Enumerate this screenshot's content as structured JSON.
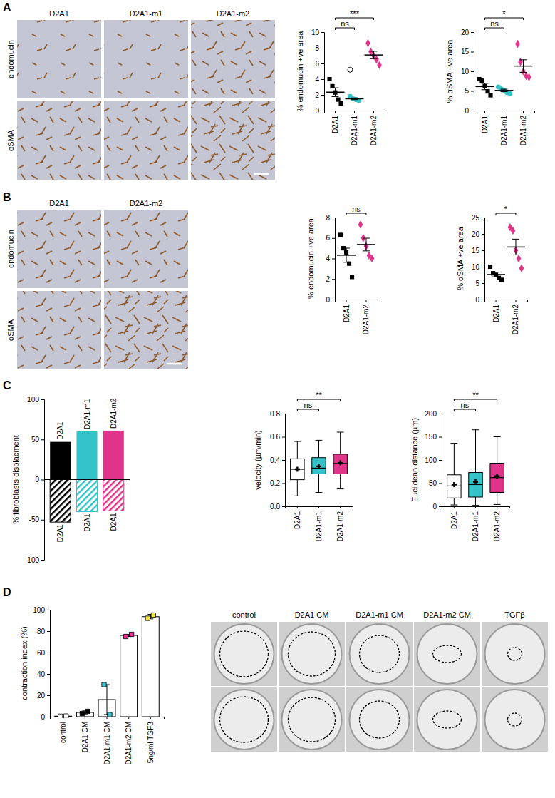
{
  "figure": {
    "panel_labels": [
      "A",
      "B",
      "C",
      "D"
    ],
    "images": [
      {
        "columns": [
          "D2A1",
          "D2A1-m1",
          "D2A1-m2"
        ],
        "rows": [
          "endomucin",
          "αSMA"
        ]
      },
      {
        "columns": [
          "D2A1",
          "D2A1-m2"
        ],
        "rows": [
          "endomucin",
          "αSMA"
        ]
      },
      {
        "columns": [
          "control",
          "D2A1 CM",
          "D2A1-m1 CM",
          "D2A1-m2 CM",
          "TGFβ"
        ]
      }
    ]
  },
  "chart_data": [
    {
      "type": "scatter",
      "y_label": "% endomucin +ve area",
      "categories": [
        "D2A1",
        "D2A1-m1",
        "D2A1-m2"
      ],
      "colors": [
        "#000000",
        "#33c3c8",
        "#e0338a"
      ],
      "markers": [
        "square",
        "circle",
        "diamond"
      ],
      "values": [
        [
          4.0,
          3.1,
          2.3,
          1.4,
          0.9
        ],
        [
          1.8,
          1.5,
          1.4,
          1.3
        ],
        [
          8.6,
          7.5,
          7.0,
          6.5,
          5.8
        ]
      ],
      "excluded": [
        [],
        [
          5.2
        ],
        []
      ],
      "means": [
        2.34,
        1.5,
        7.08
      ],
      "sem": [
        0.56,
        0.11,
        0.47
      ],
      "ylim": [
        0,
        10
      ],
      "yticks": [
        0,
        2,
        4,
        6,
        8,
        10
      ],
      "annotations": [
        {
          "text": "ns",
          "between": [
            0,
            1
          ]
        },
        {
          "text": "***",
          "between": [
            0,
            2
          ]
        }
      ]
    },
    {
      "type": "scatter",
      "y_label": "% αSMA +ve area",
      "categories": [
        "D2A1",
        "D2A1-m1",
        "D2A1-m2"
      ],
      "colors": [
        "#000000",
        "#33c3c8",
        "#e0338a"
      ],
      "markers": [
        "square",
        "circle",
        "diamond"
      ],
      "values": [
        [
          8.0,
          7.6,
          6.2,
          4.9,
          3.9
        ],
        [
          6.0,
          5.5,
          5.2,
          4.6,
          4.3
        ],
        [
          17.0,
          12.4,
          10.0,
          8.8,
          8.5
        ]
      ],
      "means": [
        6.12,
        5.12,
        11.34
      ],
      "sem": [
        0.8,
        0.31,
        1.6
      ],
      "ylim": [
        0,
        20
      ],
      "yticks": [
        0,
        5,
        10,
        15,
        20
      ],
      "annotations": [
        {
          "text": "ns",
          "between": [
            0,
            1
          ]
        },
        {
          "text": "*",
          "between": [
            0,
            2
          ]
        }
      ]
    },
    {
      "type": "scatter",
      "y_label": "% endomucin +ve area",
      "categories": [
        "D2A1",
        "D2A1-m2"
      ],
      "colors": [
        "#000000",
        "#e0338a"
      ],
      "markers": [
        "square",
        "diamond"
      ],
      "values": [
        [
          6.3,
          5.0,
          4.6,
          3.5,
          2.2
        ],
        [
          7.3,
          6.0,
          5.2,
          4.3,
          4.0
        ]
      ],
      "means": [
        4.32,
        5.36
      ],
      "sem": [
        0.69,
        0.62
      ],
      "ylim": [
        0,
        8
      ],
      "yticks": [
        0,
        2,
        4,
        6,
        8
      ],
      "annotations": [
        {
          "text": "ns",
          "between": [
            0,
            1
          ]
        }
      ]
    },
    {
      "type": "scatter",
      "y_label": "% αSMA +ve area",
      "categories": [
        "D2A1",
        "D2A1-m2"
      ],
      "colors": [
        "#000000",
        "#e0338a"
      ],
      "markers": [
        "square",
        "diamond"
      ],
      "values": [
        [
          10.0,
          8.0,
          7.5,
          6.6,
          6.0
        ],
        [
          22.0,
          21.0,
          15.0,
          12.5,
          9.5
        ]
      ],
      "means": [
        7.62,
        16.0
      ],
      "sem": [
        0.7,
        2.4
      ],
      "ylim": [
        0,
        25
      ],
      "yticks": [
        0,
        5,
        10,
        15,
        20,
        25
      ],
      "annotations": [
        {
          "text": "*",
          "between": [
            0,
            1
          ]
        }
      ]
    },
    {
      "type": "bar",
      "y_label": "% fibroblasts displacment",
      "colors": [
        "#000000",
        "#33c3c8",
        "#e0338a"
      ],
      "upper": {
        "values": [
          47,
          60,
          61
        ],
        "labels": [
          "D2A1",
          "D2A1-m1",
          "D2A1-m2"
        ]
      },
      "lower": {
        "values": [
          -53,
          -40,
          -39
        ],
        "labels": [
          "D2A1",
          "D2A1",
          "D2A1"
        ]
      },
      "ylim": [
        -100,
        100
      ],
      "yticks": [
        -100,
        -50,
        0,
        50,
        100
      ],
      "tick_labels": "y"
    },
    {
      "type": "box",
      "y_label": "velocity (µm/min)",
      "categories": [
        "D2A1",
        "D2A1-m1",
        "D2A1-m2"
      ],
      "colors": [
        "#ffffff",
        "#33c3c8",
        "#e0338a"
      ],
      "boxes": [
        {
          "min": 0.09,
          "q1": 0.23,
          "median": 0.32,
          "q3": 0.41,
          "max": 0.56,
          "mean": 0.32
        },
        {
          "min": 0.12,
          "q1": 0.28,
          "median": 0.33,
          "q3": 0.42,
          "max": 0.57,
          "mean": 0.345
        },
        {
          "min": 0.15,
          "q1": 0.28,
          "median": 0.37,
          "q3": 0.45,
          "max": 0.64,
          "mean": 0.375
        }
      ],
      "ylim": [
        0,
        0.8
      ],
      "yticks": [
        {
          "value": 0,
          "label": "0.0"
        },
        0.2,
        0.4,
        0.6,
        0.8
      ],
      "annotations": [
        {
          "text": "ns",
          "between": [
            0,
            1
          ]
        },
        {
          "text": "**",
          "between": [
            0,
            2
          ]
        }
      ]
    },
    {
      "type": "box",
      "y_label": "Euclidean distance (µm)",
      "categories": [
        "D2A1",
        "D2A1-m1",
        "D2A1-m2"
      ],
      "colors": [
        "#ffffff",
        "#33c3c8",
        "#e0338a"
      ],
      "boxes": [
        {
          "min": 3,
          "q1": 18,
          "median": 44,
          "q3": 68,
          "max": 136,
          "mean": 47
        },
        {
          "min": 2,
          "q1": 20,
          "median": 47,
          "q3": 73,
          "max": 165,
          "mean": 53
        },
        {
          "min": 4,
          "q1": 30,
          "median": 62,
          "q3": 93,
          "max": 150,
          "mean": 65
        }
      ],
      "ylim": [
        0,
        200
      ],
      "yticks": [
        0,
        50,
        100,
        150,
        200
      ],
      "annotations": [
        {
          "text": "ns",
          "between": [
            0,
            1
          ]
        },
        {
          "text": "**",
          "between": [
            0,
            2
          ]
        }
      ]
    },
    {
      "type": "bar",
      "y_label": "contraction index (%)",
      "categories": [
        "control",
        "D2A1 CM",
        "D2A1-m1 CM",
        "D2A1-m2 CM",
        "5ng/ml TGFβ"
      ],
      "values": [
        0.5,
        4,
        16,
        76,
        93.5
      ],
      "sd": [
        0.2,
        1.4,
        14,
        1,
        2.1
      ],
      "points": [
        [
          0.4,
          0.6
        ],
        [
          3,
          5
        ],
        [
          30,
          2
        ],
        [
          75,
          77
        ],
        [
          92,
          95
        ]
      ],
      "colors": [
        "#ffffff",
        "#000000",
        "#33c3c8",
        "#e0338a",
        "#f2e33a"
      ],
      "ylim": [
        0,
        100
      ],
      "yticks": [
        0,
        20,
        40,
        60,
        80,
        100
      ]
    }
  ]
}
